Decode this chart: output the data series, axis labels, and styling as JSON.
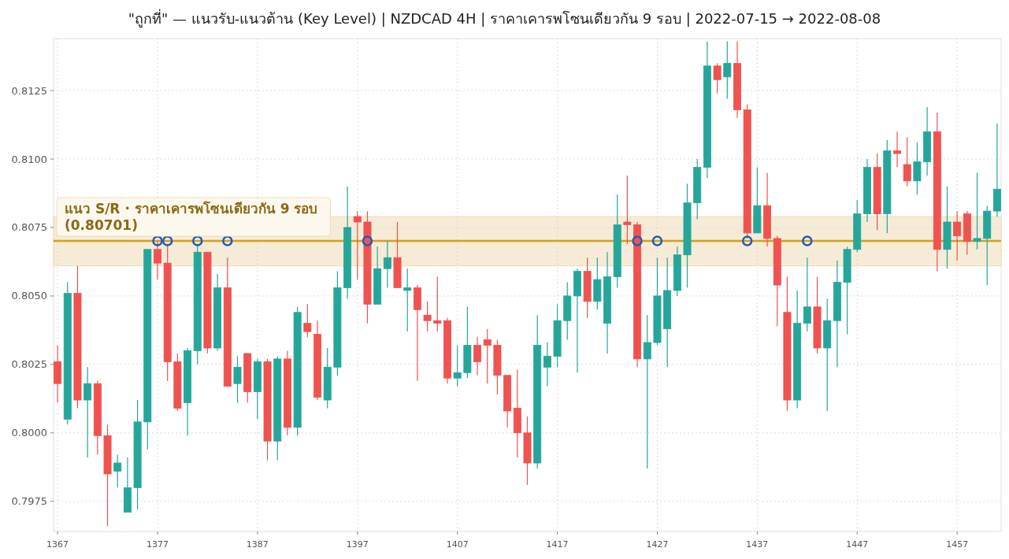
{
  "chart_data": {
    "type": "candlestick",
    "title": "\"ถูกที่\" — แนวรับ-แนวต้าน (Key Level)  |  NZDCAD 4H  |  ราคาเคารพโซนเดียวกัน 9 รอบ  |  2022-07-15 → 2022-08-08",
    "xlim": [
      1366.6,
      1461.4
    ],
    "ylim": [
      0.7964,
      0.8144
    ],
    "xticks": [
      1367,
      1377,
      1387,
      1397,
      1407,
      1417,
      1427,
      1437,
      1447,
      1457
    ],
    "yticks": [
      0.7975,
      {
        "value": 0.8,
        "label": "0.8000"
      },
      0.8025,
      {
        "value": 0.805,
        "label": "0.8050"
      },
      0.8075,
      {
        "value": 0.81,
        "label": "0.8100"
      },
      0.8125
    ],
    "grid": true,
    "bands": [
      {
        "axis": "y",
        "from": 0.8061,
        "to": 0.8079,
        "color": "#f5ebd7"
      }
    ],
    "ref_lines": [
      {
        "axis": "y",
        "value": 0.80701,
        "label": "แนว S/R · ราคาเคารพโซนเดียวกัน 9 รอบ  (0.80701)",
        "color": "#d4a017"
      }
    ],
    "series": [
      {
        "type": "candlestick",
        "x": [
          1367,
          1368,
          1369,
          1370,
          1371,
          1372,
          1373,
          1374,
          1375,
          1376,
          1377,
          1378,
          1379,
          1380,
          1381,
          1382,
          1383,
          1384,
          1385,
          1386,
          1387,
          1388,
          1389,
          1390,
          1391,
          1392,
          1393,
          1394,
          1395,
          1396,
          1397,
          1398,
          1399,
          1400,
          1401,
          1402,
          1403,
          1404,
          1405,
          1406,
          1407,
          1408,
          1409,
          1410,
          1411,
          1412,
          1413,
          1414,
          1415,
          1416,
          1417,
          1418,
          1419,
          1420,
          1421,
          1422,
          1423,
          1424,
          1425,
          1426,
          1427,
          1428,
          1429,
          1430,
          1431,
          1432,
          1433,
          1434,
          1435,
          1436,
          1437,
          1438,
          1439,
          1440,
          1441,
          1442,
          1443,
          1444,
          1445,
          1446,
          1447,
          1448,
          1449,
          1450,
          1451,
          1452,
          1453,
          1454,
          1455,
          1456,
          1457,
          1458,
          1459,
          1460,
          1461
        ],
        "ohlc": [
          [
            0.8026,
            0.8032,
            0.8011,
            0.8018
          ],
          [
            0.8005,
            0.8055,
            0.8003,
            0.8051
          ],
          [
            0.8051,
            0.8061,
            0.8009,
            0.8012
          ],
          [
            0.8012,
            0.8024,
            0.7991,
            0.8018
          ],
          [
            0.8018,
            0.8019,
            0.7992,
            0.7999
          ],
          [
            0.7999,
            0.8003,
            0.7966,
            0.7985
          ],
          [
            0.7986,
            0.7992,
            0.798,
            0.7989
          ],
          [
            0.7971,
            0.7991,
            0.7971,
            0.798
          ],
          [
            0.798,
            0.8012,
            0.7972,
            0.8004
          ],
          [
            0.8004,
            0.8067,
            0.7994,
            0.8067
          ],
          [
            0.8067,
            0.807,
            0.8056,
            0.8062
          ],
          [
            0.8062,
            0.8069,
            0.8019,
            0.8026
          ],
          [
            0.8026,
            0.8029,
            0.8008,
            0.8009
          ],
          [
            0.8011,
            0.8031,
            0.7999,
            0.803
          ],
          [
            0.803,
            0.8069,
            0.8025,
            0.8066
          ],
          [
            0.8066,
            0.8066,
            0.8029,
            0.8031
          ],
          [
            0.8031,
            0.8058,
            0.803,
            0.8053
          ],
          [
            0.8053,
            0.8064,
            0.8017,
            0.8017
          ],
          [
            0.8018,
            0.8028,
            0.8011,
            0.8024
          ],
          [
            0.8029,
            0.8029,
            0.8011,
            0.8015
          ],
          [
            0.8015,
            0.8027,
            0.8005,
            0.8026
          ],
          [
            0.8026,
            0.8027,
            0.799,
            0.7997
          ],
          [
            0.7997,
            0.8028,
            0.799,
            0.8027
          ],
          [
            0.8027,
            0.803,
            0.7999,
            0.8002
          ],
          [
            0.8002,
            0.8046,
            0.7999,
            0.8044
          ],
          [
            0.804,
            0.8047,
            0.8035,
            0.8037
          ],
          [
            0.8036,
            0.8041,
            0.8012,
            0.8013
          ],
          [
            0.8012,
            0.8031,
            0.8009,
            0.8024
          ],
          [
            0.8024,
            0.8059,
            0.8021,
            0.8053
          ],
          [
            0.8053,
            0.809,
            0.8049,
            0.8075
          ],
          [
            0.8079,
            0.8081,
            0.8056,
            0.8077
          ],
          [
            0.8077,
            0.8081,
            0.804,
            0.8047
          ],
          [
            0.8047,
            0.8068,
            0.8047,
            0.806
          ],
          [
            0.806,
            0.807,
            0.8053,
            0.8064
          ],
          [
            0.8064,
            0.8077,
            0.8053,
            0.8053
          ],
          [
            0.8052,
            0.806,
            0.8037,
            0.8053
          ],
          [
            0.8053,
            0.8054,
            0.8019,
            0.8045
          ],
          [
            0.8043,
            0.8048,
            0.8037,
            0.8041
          ],
          [
            0.8041,
            0.8057,
            0.8037,
            0.804
          ],
          [
            0.8041,
            0.8042,
            0.8018,
            0.802
          ],
          [
            0.802,
            0.8032,
            0.8017,
            0.8022
          ],
          [
            0.8022,
            0.8046,
            0.802,
            0.8032
          ],
          [
            0.8032,
            0.8035,
            0.8021,
            0.8026
          ],
          [
            0.8034,
            0.8038,
            0.8018,
            0.8032
          ],
          [
            0.8032,
            0.8034,
            0.8014,
            0.8021
          ],
          [
            0.8021,
            0.8021,
            0.8002,
            0.8008
          ],
          [
            0.8009,
            0.8023,
            0.7991,
            0.8
          ],
          [
            0.8,
            0.8006,
            0.7981,
            0.7989
          ],
          [
            0.7989,
            0.8043,
            0.7987,
            0.8032
          ],
          [
            0.8024,
            0.8033,
            0.8017,
            0.8028
          ],
          [
            0.8028,
            0.8047,
            0.8024,
            0.8041
          ],
          [
            0.8041,
            0.8055,
            0.8034,
            0.805
          ],
          [
            0.805,
            0.806,
            0.8022,
            0.8059
          ],
          [
            0.8059,
            0.8064,
            0.8042,
            0.8048
          ],
          [
            0.8048,
            0.8064,
            0.8045,
            0.8056
          ],
          [
            0.804,
            0.8066,
            0.8029,
            0.8057
          ],
          [
            0.8057,
            0.8087,
            0.8053,
            0.8076
          ],
          [
            0.8077,
            0.8094,
            0.8069,
            0.8076
          ],
          [
            0.8076,
            0.8077,
            0.8024,
            0.8027
          ],
          [
            0.8027,
            0.8043,
            0.7987,
            0.8033
          ],
          [
            0.8033,
            0.8064,
            0.8032,
            0.805
          ],
          [
            0.8038,
            0.8064,
            0.8024,
            0.8052
          ],
          [
            0.8052,
            0.8068,
            0.805,
            0.8065
          ],
          [
            0.8065,
            0.8091,
            0.8053,
            0.8084
          ],
          [
            0.8084,
            0.81,
            0.8078,
            0.8097
          ],
          [
            0.8097,
            0.8143,
            0.8093,
            0.8134
          ],
          [
            0.8134,
            0.8135,
            0.8124,
            0.8129
          ],
          [
            0.813,
            0.8143,
            0.8122,
            0.8135
          ],
          [
            0.8135,
            0.8143,
            0.8115,
            0.8118
          ],
          [
            0.8118,
            0.812,
            0.8071,
            0.8073
          ],
          [
            0.8073,
            0.8097,
            0.8073,
            0.8083
          ],
          [
            0.8083,
            0.8095,
            0.8068,
            0.8071
          ],
          [
            0.8071,
            0.8072,
            0.8039,
            0.8054
          ],
          [
            0.8044,
            0.8057,
            0.8008,
            0.8012
          ],
          [
            0.8012,
            0.8052,
            0.8009,
            0.804
          ],
          [
            0.804,
            0.8064,
            0.8037,
            0.8046
          ],
          [
            0.8046,
            0.8057,
            0.8029,
            0.8031
          ],
          [
            0.8031,
            0.8049,
            0.8008,
            0.8041
          ],
          [
            0.8041,
            0.8063,
            0.8024,
            0.8055
          ],
          [
            0.8055,
            0.8068,
            0.8036,
            0.8067
          ],
          [
            0.8067,
            0.8085,
            0.8066,
            0.808
          ],
          [
            0.808,
            0.81,
            0.8077,
            0.8097
          ],
          [
            0.8097,
            0.8102,
            0.8074,
            0.808
          ],
          [
            0.808,
            0.8107,
            0.8073,
            0.8103
          ],
          [
            0.8103,
            0.811,
            0.8097,
            0.8102
          ],
          [
            0.8098,
            0.8108,
            0.809,
            0.8092
          ],
          [
            0.8092,
            0.8106,
            0.8087,
            0.8099
          ],
          [
            0.8099,
            0.8119,
            0.8094,
            0.811
          ],
          [
            0.811,
            0.8117,
            0.8059,
            0.8067
          ],
          [
            0.8067,
            0.809,
            0.806,
            0.8077
          ],
          [
            0.8077,
            0.8081,
            0.8063,
            0.8072
          ],
          [
            0.808,
            0.8081,
            0.8065,
            0.807
          ],
          [
            0.807,
            0.8095,
            0.8067,
            0.8071
          ],
          [
            0.8071,
            0.8083,
            0.8054,
            0.8081
          ],
          [
            0.8081,
            0.8113,
            0.8079,
            0.8089
          ]
        ],
        "colors": [
          "#ef5350",
          "#26a69a",
          "#ef5350",
          "#26a69a",
          "#ef5350",
          "#ef5350",
          "#26a69a",
          "#26a69a",
          "#26a69a",
          "#26a69a",
          "#ef5350",
          "#ef5350",
          "#ef5350",
          "#26a69a",
          "#26a69a",
          "#ef5350",
          "#26a69a",
          "#ef5350",
          "#26a69a",
          "#ef5350",
          "#26a69a",
          "#ef5350",
          "#26a69a",
          "#ef5350",
          "#26a69a",
          "#ef5350",
          "#ef5350",
          "#26a69a",
          "#26a69a",
          "#26a69a",
          "#ef5350",
          "#ef5350",
          "#26a69a",
          "#26a69a",
          "#ef5350",
          "#26a69a",
          "#ef5350",
          "#ef5350",
          "#ef5350",
          "#ef5350",
          "#26a69a",
          "#26a69a",
          "#ef5350",
          "#ef5350",
          "#ef5350",
          "#ef5350",
          "#ef5350",
          "#ef5350",
          "#26a69a",
          "#26a69a",
          "#26a69a",
          "#26a69a",
          "#26a69a",
          "#ef5350",
          "#26a69a",
          "#26a69a",
          "#26a69a",
          "#ef5350",
          "#ef5350",
          "#26a69a",
          "#26a69a",
          "#26a69a",
          "#26a69a",
          "#26a69a",
          "#26a69a",
          "#26a69a",
          "#ef5350",
          "#26a69a",
          "#ef5350",
          "#ef5350",
          "#26a69a",
          "#ef5350",
          "#ef5350",
          "#ef5350",
          "#26a69a",
          "#26a69a",
          "#ef5350",
          "#26a69a",
          "#26a69a",
          "#26a69a",
          "#26a69a",
          "#26a69a",
          "#ef5350",
          "#26a69a",
          "#ef5350",
          "#ef5350",
          "#26a69a",
          "#26a69a",
          "#ef5350",
          "#26a69a",
          "#ef5350",
          "#ef5350",
          "#26a69a",
          "#26a69a",
          "#26a69a"
        ]
      },
      {
        "type": "scatter",
        "x": [
          1377,
          1378,
          1381,
          1384,
          1398,
          1425,
          1427,
          1436,
          1442
        ],
        "values": [
          0.80701,
          0.80701,
          0.80701,
          0.80701,
          0.80701,
          0.80701,
          0.80701,
          0.80701,
          0.80701
        ],
        "color": "#1f5bc1",
        "marker": "circle"
      }
    ]
  }
}
